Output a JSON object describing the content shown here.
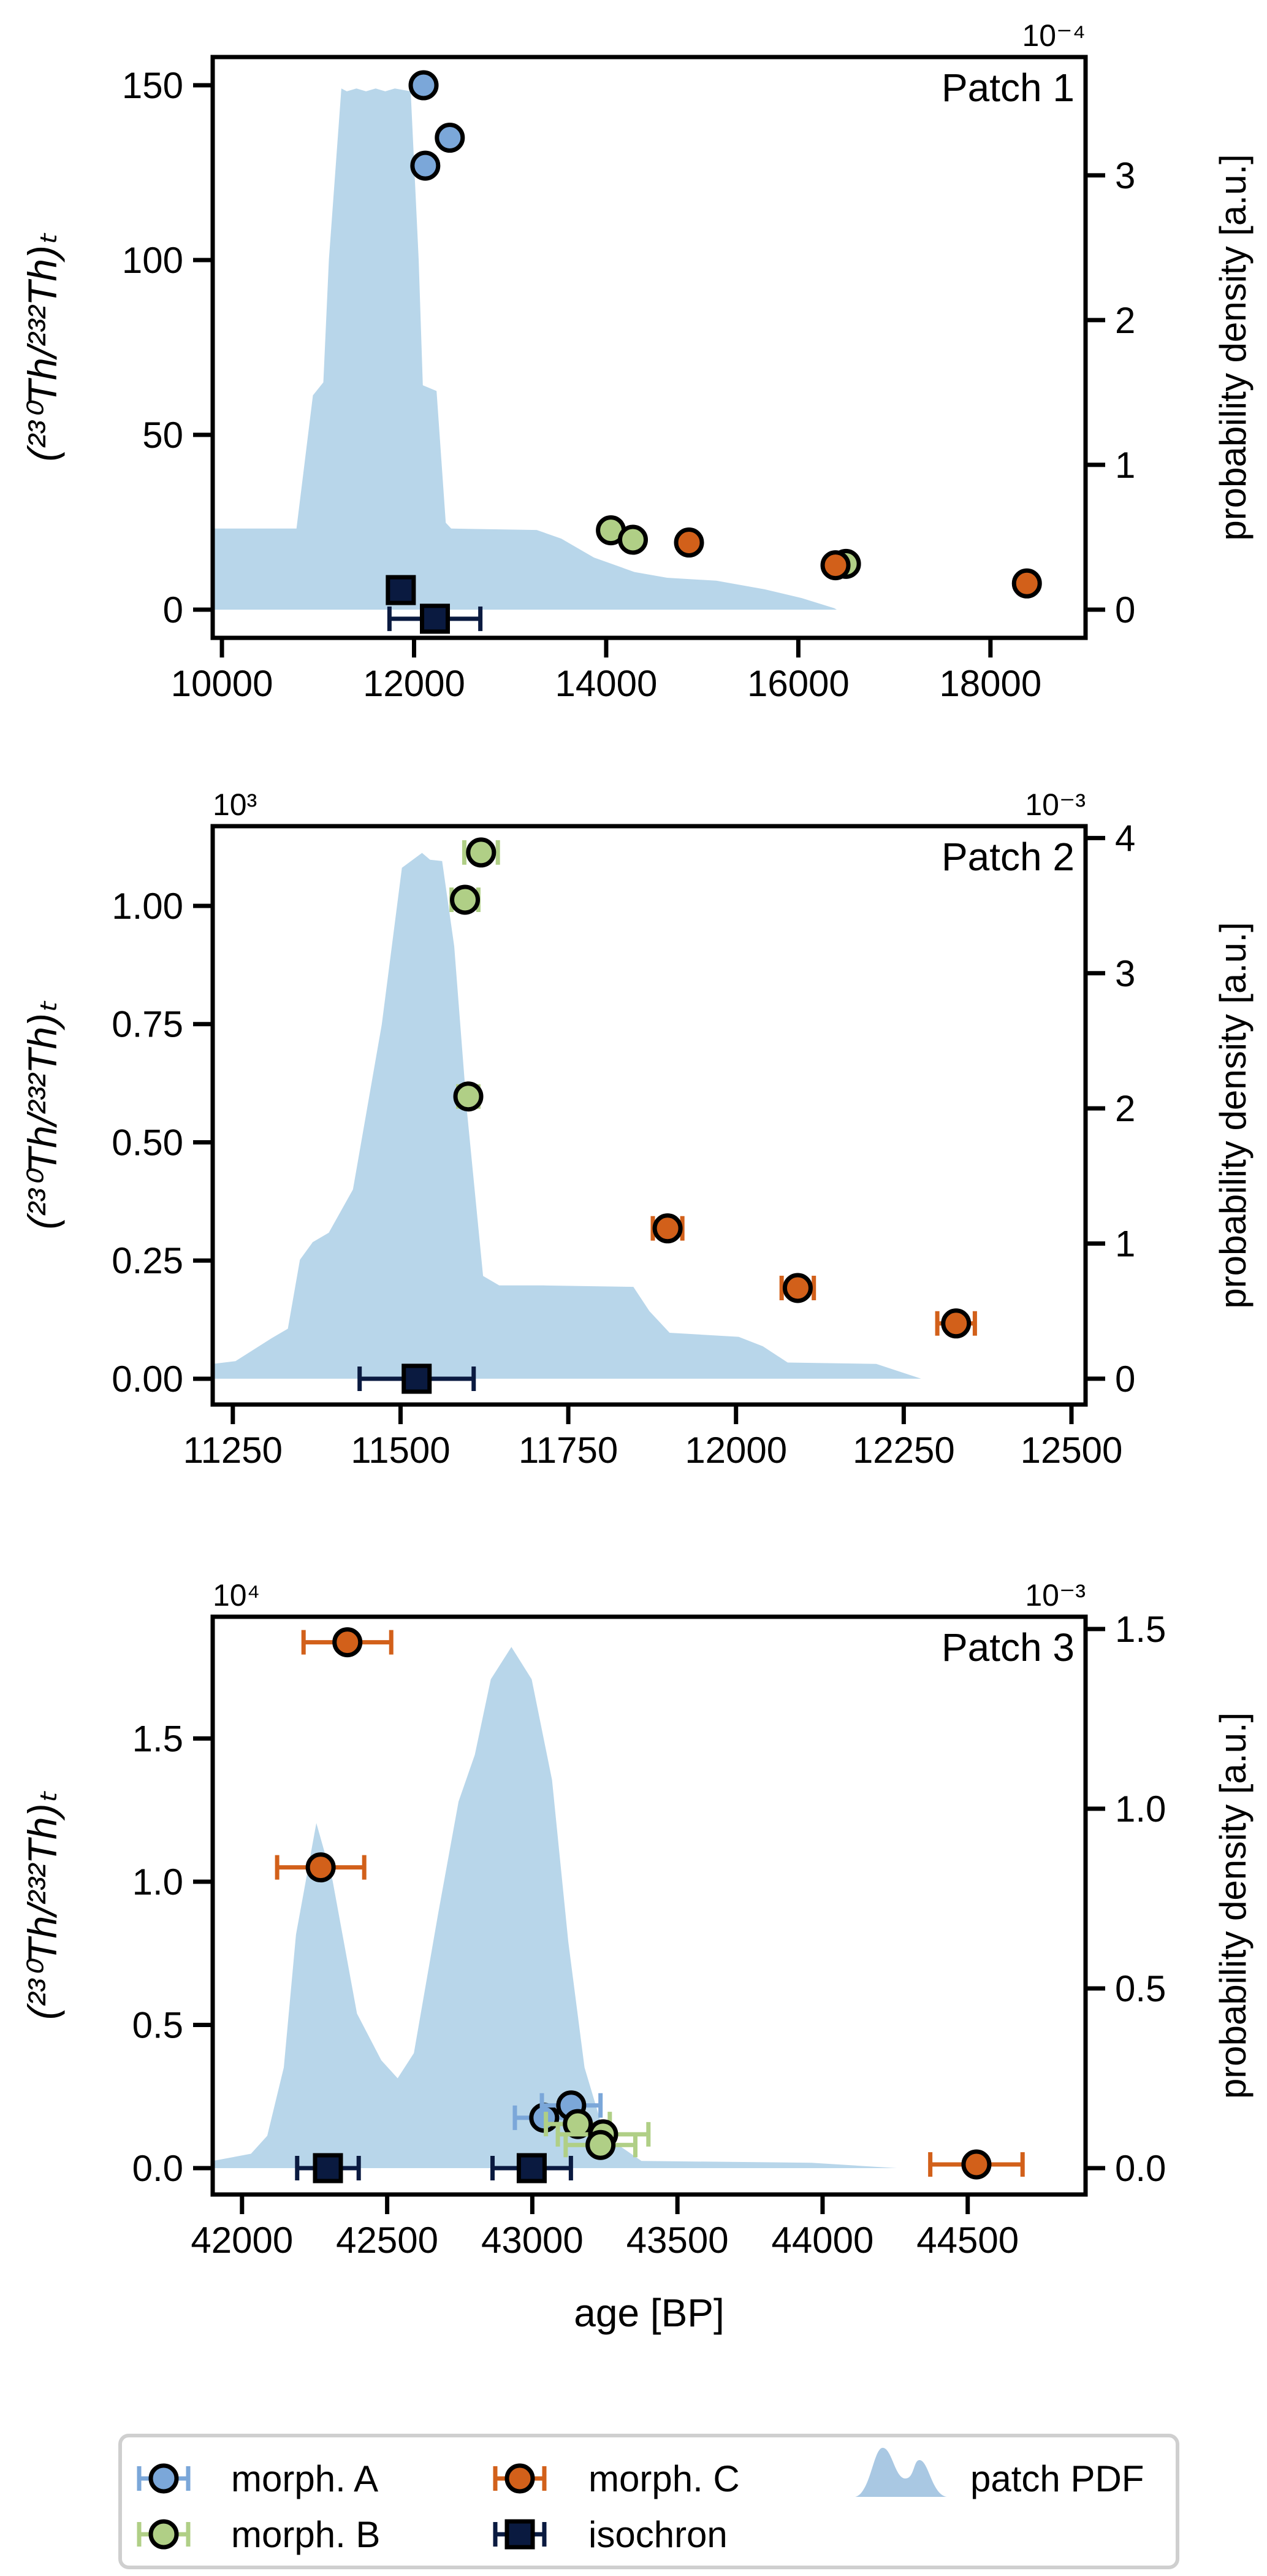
{
  "colors": {
    "morph_A": "#7ba7d9",
    "morph_B": "#b0cf86",
    "morph_C": "#d2601a",
    "isochron": "#0a1a40",
    "pdf": "#b8d6ea"
  },
  "chart_data": [
    {
      "type": "scatter",
      "title": "Patch 1",
      "xlabel": "",
      "ylabel": "(²³⁰Th/²³²Th)ₜ",
      "y2label": "probability density [a.u.]",
      "xlim": [
        9904,
        18990
      ],
      "ylim": [
        -8.07,
        158.07
      ],
      "y2lim": [
        -0.195,
        3.817
      ],
      "y_offset_label": "",
      "y2_offset_label": "10⁻⁴",
      "xticks": [
        10000,
        12000,
        14000,
        16000,
        18000
      ],
      "xtick_labels": [
        "10000",
        "12000",
        "14000",
        "16000",
        "18000"
      ],
      "yticks": [
        0,
        50,
        100,
        150
      ],
      "ytick_labels": [
        "0",
        "50",
        "100",
        "150"
      ],
      "y2ticks": [
        0,
        1,
        2,
        3
      ],
      "y2tick_labels": [
        "0",
        "1",
        "2",
        "3"
      ],
      "series": [
        {
          "name": "morph. A",
          "marker": "circle",
          "points": [
            [
              12099,
              150,
              0
            ],
            [
              12372,
              135,
              0
            ],
            [
              12117,
              127,
              0
            ]
          ]
        },
        {
          "name": "morph. B",
          "marker": "circle",
          "points": [
            [
              14049,
              22.7,
              0
            ],
            [
              14278,
              20,
              0
            ],
            [
              16496,
              13.1,
              0
            ]
          ]
        },
        {
          "name": "morph. C",
          "marker": "circle",
          "points": [
            [
              14862,
              19.2,
              0
            ],
            [
              16387,
              12.7,
              0
            ],
            [
              18379,
              7.5,
              0
            ]
          ]
        },
        {
          "name": "isochron",
          "marker": "square",
          "points": [
            [
              11862,
              5.6,
              0
            ],
            [
              12217,
              -2.6,
              473
            ]
          ]
        }
      ],
      "pdf": [
        [
          9904,
          0.56
        ],
        [
          10776,
          0.56
        ],
        [
          10947,
          1.48
        ],
        [
          11056,
          1.57
        ],
        [
          11114,
          2.42
        ],
        [
          11243,
          3.6
        ],
        [
          11300,
          3.58
        ],
        [
          11400,
          3.6
        ],
        [
          11500,
          3.58
        ],
        [
          11600,
          3.6
        ],
        [
          11700,
          3.58
        ],
        [
          11800,
          3.6
        ],
        [
          11965,
          3.58
        ],
        [
          12048,
          2.42
        ],
        [
          12091,
          1.55
        ],
        [
          12234,
          1.51
        ],
        [
          12330,
          0.6
        ],
        [
          12387,
          0.56
        ],
        [
          13277,
          0.55
        ],
        [
          13533,
          0.49
        ],
        [
          13872,
          0.36
        ],
        [
          14294,
          0.26
        ],
        [
          14634,
          0.22
        ],
        [
          15146,
          0.2
        ],
        [
          15651,
          0.14
        ],
        [
          16035,
          0.08
        ],
        [
          16374,
          0.01
        ],
        [
          16400,
          0
        ]
      ]
    },
    {
      "type": "scatter",
      "title": "Patch 2",
      "xlabel": "",
      "ylabel": "(²³⁰Th/²³²Th)ₜ",
      "y2label": "probability density [a.u.]",
      "xlim": [
        11220,
        12521
      ],
      "ylim": [
        -0.0545,
        1.1686
      ],
      "y2lim": [
        -0.191,
        4.088
      ],
      "y_offset_label": "10³",
      "y2_offset_label": "10⁻³",
      "xticks": [
        11250,
        11500,
        11750,
        12000,
        12250,
        12500
      ],
      "xtick_labels": [
        "11250",
        "11500",
        "11750",
        "12000",
        "12250",
        "12500"
      ],
      "yticks": [
        0,
        0.25,
        0.5,
        0.75,
        1.0
      ],
      "ytick_labels": [
        "0.00",
        "0.25",
        "0.50",
        "0.75",
        "1.00"
      ],
      "y2ticks": [
        0,
        1,
        2,
        3,
        4
      ],
      "y2tick_labels": [
        "0",
        "1",
        "2",
        "3",
        "4"
      ],
      "series": [
        {
          "name": "morph. A",
          "marker": "circle",
          "points": []
        },
        {
          "name": "morph. B",
          "marker": "circle",
          "points": [
            [
              11620,
              1.113,
              25
            ],
            [
              11596,
              1.013,
              20
            ],
            [
              11601,
              0.597,
              15
            ]
          ]
        },
        {
          "name": "morph. C",
          "marker": "circle",
          "points": [
            [
              11898,
              0.318,
              22
            ],
            [
              12092,
              0.192,
              24
            ],
            [
              12328,
              0.117,
              28
            ]
          ]
        },
        {
          "name": "isochron",
          "marker": "square",
          "points": [
            [
              11524,
              0,
              85
            ]
          ]
        }
      ],
      "pdf": [
        [
          11220,
          0.11
        ],
        [
          11254,
          0.13
        ],
        [
          11308,
          0.3
        ],
        [
          11332,
          0.37
        ],
        [
          11350,
          0.88
        ],
        [
          11369,
          1.01
        ],
        [
          11393,
          1.08
        ],
        [
          11429,
          1.4
        ],
        [
          11472,
          2.62
        ],
        [
          11502,
          3.78
        ],
        [
          11532,
          3.89
        ],
        [
          11544,
          3.84
        ],
        [
          11562,
          3.83
        ],
        [
          11580,
          3.2
        ],
        [
          11599,
          1.98
        ],
        [
          11623,
          0.76
        ],
        [
          11647,
          0.69
        ],
        [
          11713,
          0.69
        ],
        [
          11847,
          0.68
        ],
        [
          11871,
          0.5
        ],
        [
          11901,
          0.34
        ],
        [
          12004,
          0.31
        ],
        [
          12040,
          0.24
        ],
        [
          12077,
          0.12
        ],
        [
          12209,
          0.11
        ],
        [
          12276,
          0
        ]
      ]
    },
    {
      "type": "scatter",
      "title": "Patch 3",
      "xlabel": "age [BP]",
      "ylabel": "(²³⁰Th/²³²Th)ₜ",
      "y2label": "probability density [a.u.]",
      "xlim": [
        41899,
        44906
      ],
      "ylim": [
        -0.092,
        1.925
      ],
      "y2lim": [
        -0.0734,
        1.5341
      ],
      "y_offset_label": "10⁴",
      "y2_offset_label": "10⁻³",
      "xticks": [
        42000,
        42500,
        43000,
        43500,
        44000,
        44500
      ],
      "xtick_labels": [
        "42000",
        "42500",
        "43000",
        "43500",
        "44000",
        "44500"
      ],
      "yticks": [
        0,
        0.5,
        1.0,
        1.5
      ],
      "ytick_labels": [
        "0.0",
        "0.5",
        "1.0",
        "1.5"
      ],
      "y2ticks": [
        0,
        0.5,
        1.0,
        1.5
      ],
      "y2tick_labels": [
        "0.0",
        "0.5",
        "1.0",
        "1.5"
      ],
      "series": [
        {
          "name": "morph. A",
          "marker": "circle",
          "points": [
            [
              43041,
              0.176,
              101
            ],
            [
              43134,
              0.219,
              101
            ]
          ]
        },
        {
          "name": "morph. B",
          "marker": "circle",
          "points": [
            [
              43157,
              0.154,
              110
            ],
            [
              43244,
              0.118,
              156
            ],
            [
              43235,
              0.081,
              120
            ]
          ]
        },
        {
          "name": "morph. C",
          "marker": "circle",
          "points": [
            [
              42363,
              1.836,
              151
            ],
            [
              42271,
              1.05,
              150
            ],
            [
              44530,
              0.013,
              159
            ]
          ]
        },
        {
          "name": "isochron",
          "marker": "square",
          "points": [
            [
              42296,
              0,
              106
            ],
            [
              42998,
              0,
              135
            ]
          ]
        }
      ],
      "pdf": [
        [
          41899,
          0.02
        ],
        [
          42031,
          0.04
        ],
        [
          42087,
          0.09
        ],
        [
          42144,
          0.28
        ],
        [
          42186,
          0.65
        ],
        [
          42256,
          0.96
        ],
        [
          42312,
          0.8
        ],
        [
          42396,
          0.43
        ],
        [
          42480,
          0.3
        ],
        [
          42536,
          0.25
        ],
        [
          42592,
          0.32
        ],
        [
          42676,
          0.71
        ],
        [
          42746,
          1.02
        ],
        [
          42802,
          1.15
        ],
        [
          42857,
          1.36
        ],
        [
          42928,
          1.45
        ],
        [
          42998,
          1.36
        ],
        [
          43068,
          1.08
        ],
        [
          43124,
          0.63
        ],
        [
          43180,
          0.28
        ],
        [
          43250,
          0.09
        ],
        [
          43376,
          0.02
        ],
        [
          43962,
          0.015
        ],
        [
          44256,
          0
        ]
      ]
    }
  ],
  "legend": {
    "items": [
      {
        "key": "morph_A",
        "label": "morph. A",
        "marker": "circle"
      },
      {
        "key": "morph_B",
        "label": "morph. B",
        "marker": "circle"
      },
      {
        "key": "morph_C",
        "label": "morph. C",
        "marker": "circle"
      },
      {
        "key": "isochron",
        "label": "isochron",
        "marker": "square"
      },
      {
        "key": "pdf",
        "label": "patch PDF",
        "marker": "pdf"
      }
    ]
  }
}
